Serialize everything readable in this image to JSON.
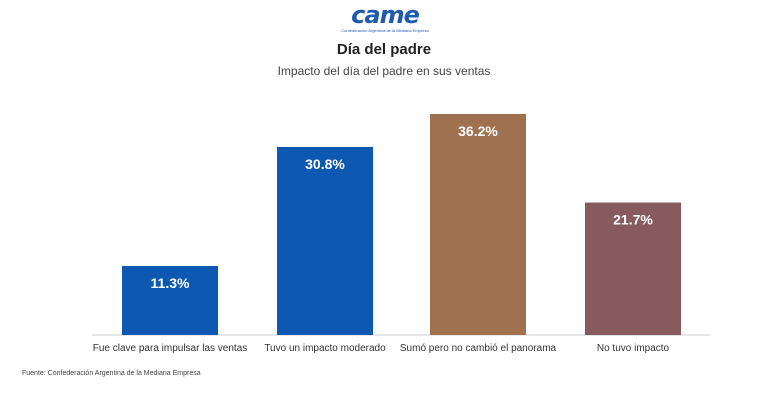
{
  "logo": {
    "wordmark": "came",
    "tagline": "Confederación Argentina de la Mediana Empresa"
  },
  "chart_data": {
    "type": "bar",
    "title": "Día del padre",
    "subtitle": "Impacto del día del padre en sus ventas",
    "categories": [
      "Fue clave para impulsar las ventas",
      "Tuvo un impacto moderado",
      "Sumó pero no cambió el panorama",
      "No tuvo impacto"
    ],
    "values": [
      11.3,
      30.8,
      36.2,
      21.7
    ],
    "value_labels": [
      "11.3%",
      "30.8%",
      "36.2%",
      "21.7%"
    ],
    "colors": [
      "#0d58b0",
      "#0d58b0",
      "#a0714f",
      "#875a5e"
    ],
    "xlabel": "",
    "ylabel": "",
    "ylim": [
      0,
      36.2
    ],
    "grid": false,
    "legend": "none"
  },
  "source": "Fuente: Confederación Argentina de la Mediana Empresa"
}
